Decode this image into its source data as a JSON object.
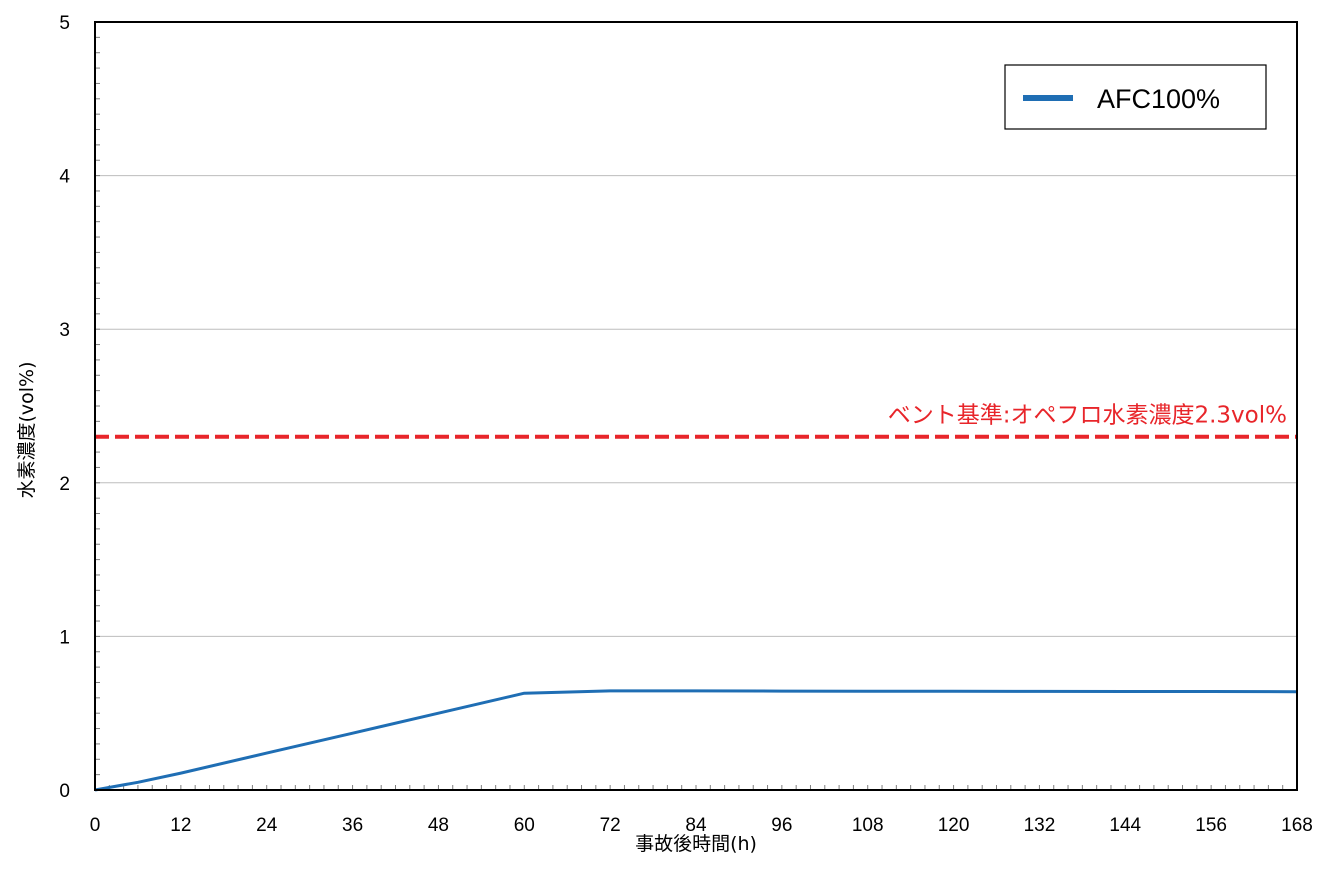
{
  "chart_data": {
    "type": "line",
    "xlabel": "事故後時間(h)",
    "ylabel": "水素濃度(vol%)",
    "xlim": [
      0,
      168
    ],
    "ylim": [
      0,
      5
    ],
    "x_ticks": [
      "0",
      "12",
      "24",
      "36",
      "48",
      "60",
      "72",
      "84",
      "96",
      "108",
      "120",
      "132",
      "144",
      "156",
      "168"
    ],
    "y_ticks": [
      "0",
      "1",
      "2",
      "3",
      "4",
      "5"
    ],
    "grid": "horizontal",
    "legend_position": "top-right",
    "series": [
      {
        "name": "AFC100%",
        "color": "#1f6eb4",
        "x": [
          0,
          6,
          12,
          24,
          36,
          48,
          60,
          72,
          84,
          96,
          108,
          120,
          132,
          144,
          156,
          168
        ],
        "values": [
          0,
          0.05,
          0.11,
          0.24,
          0.37,
          0.5,
          0.63,
          0.645,
          0.645,
          0.644,
          0.643,
          0.643,
          0.642,
          0.641,
          0.641,
          0.64
        ]
      }
    ],
    "reference_lines": [
      {
        "label": "ベント基準:オペフロ水素濃度2.3vol%",
        "y": 2.3,
        "color": "#e8252a",
        "style": "dashed"
      }
    ]
  }
}
